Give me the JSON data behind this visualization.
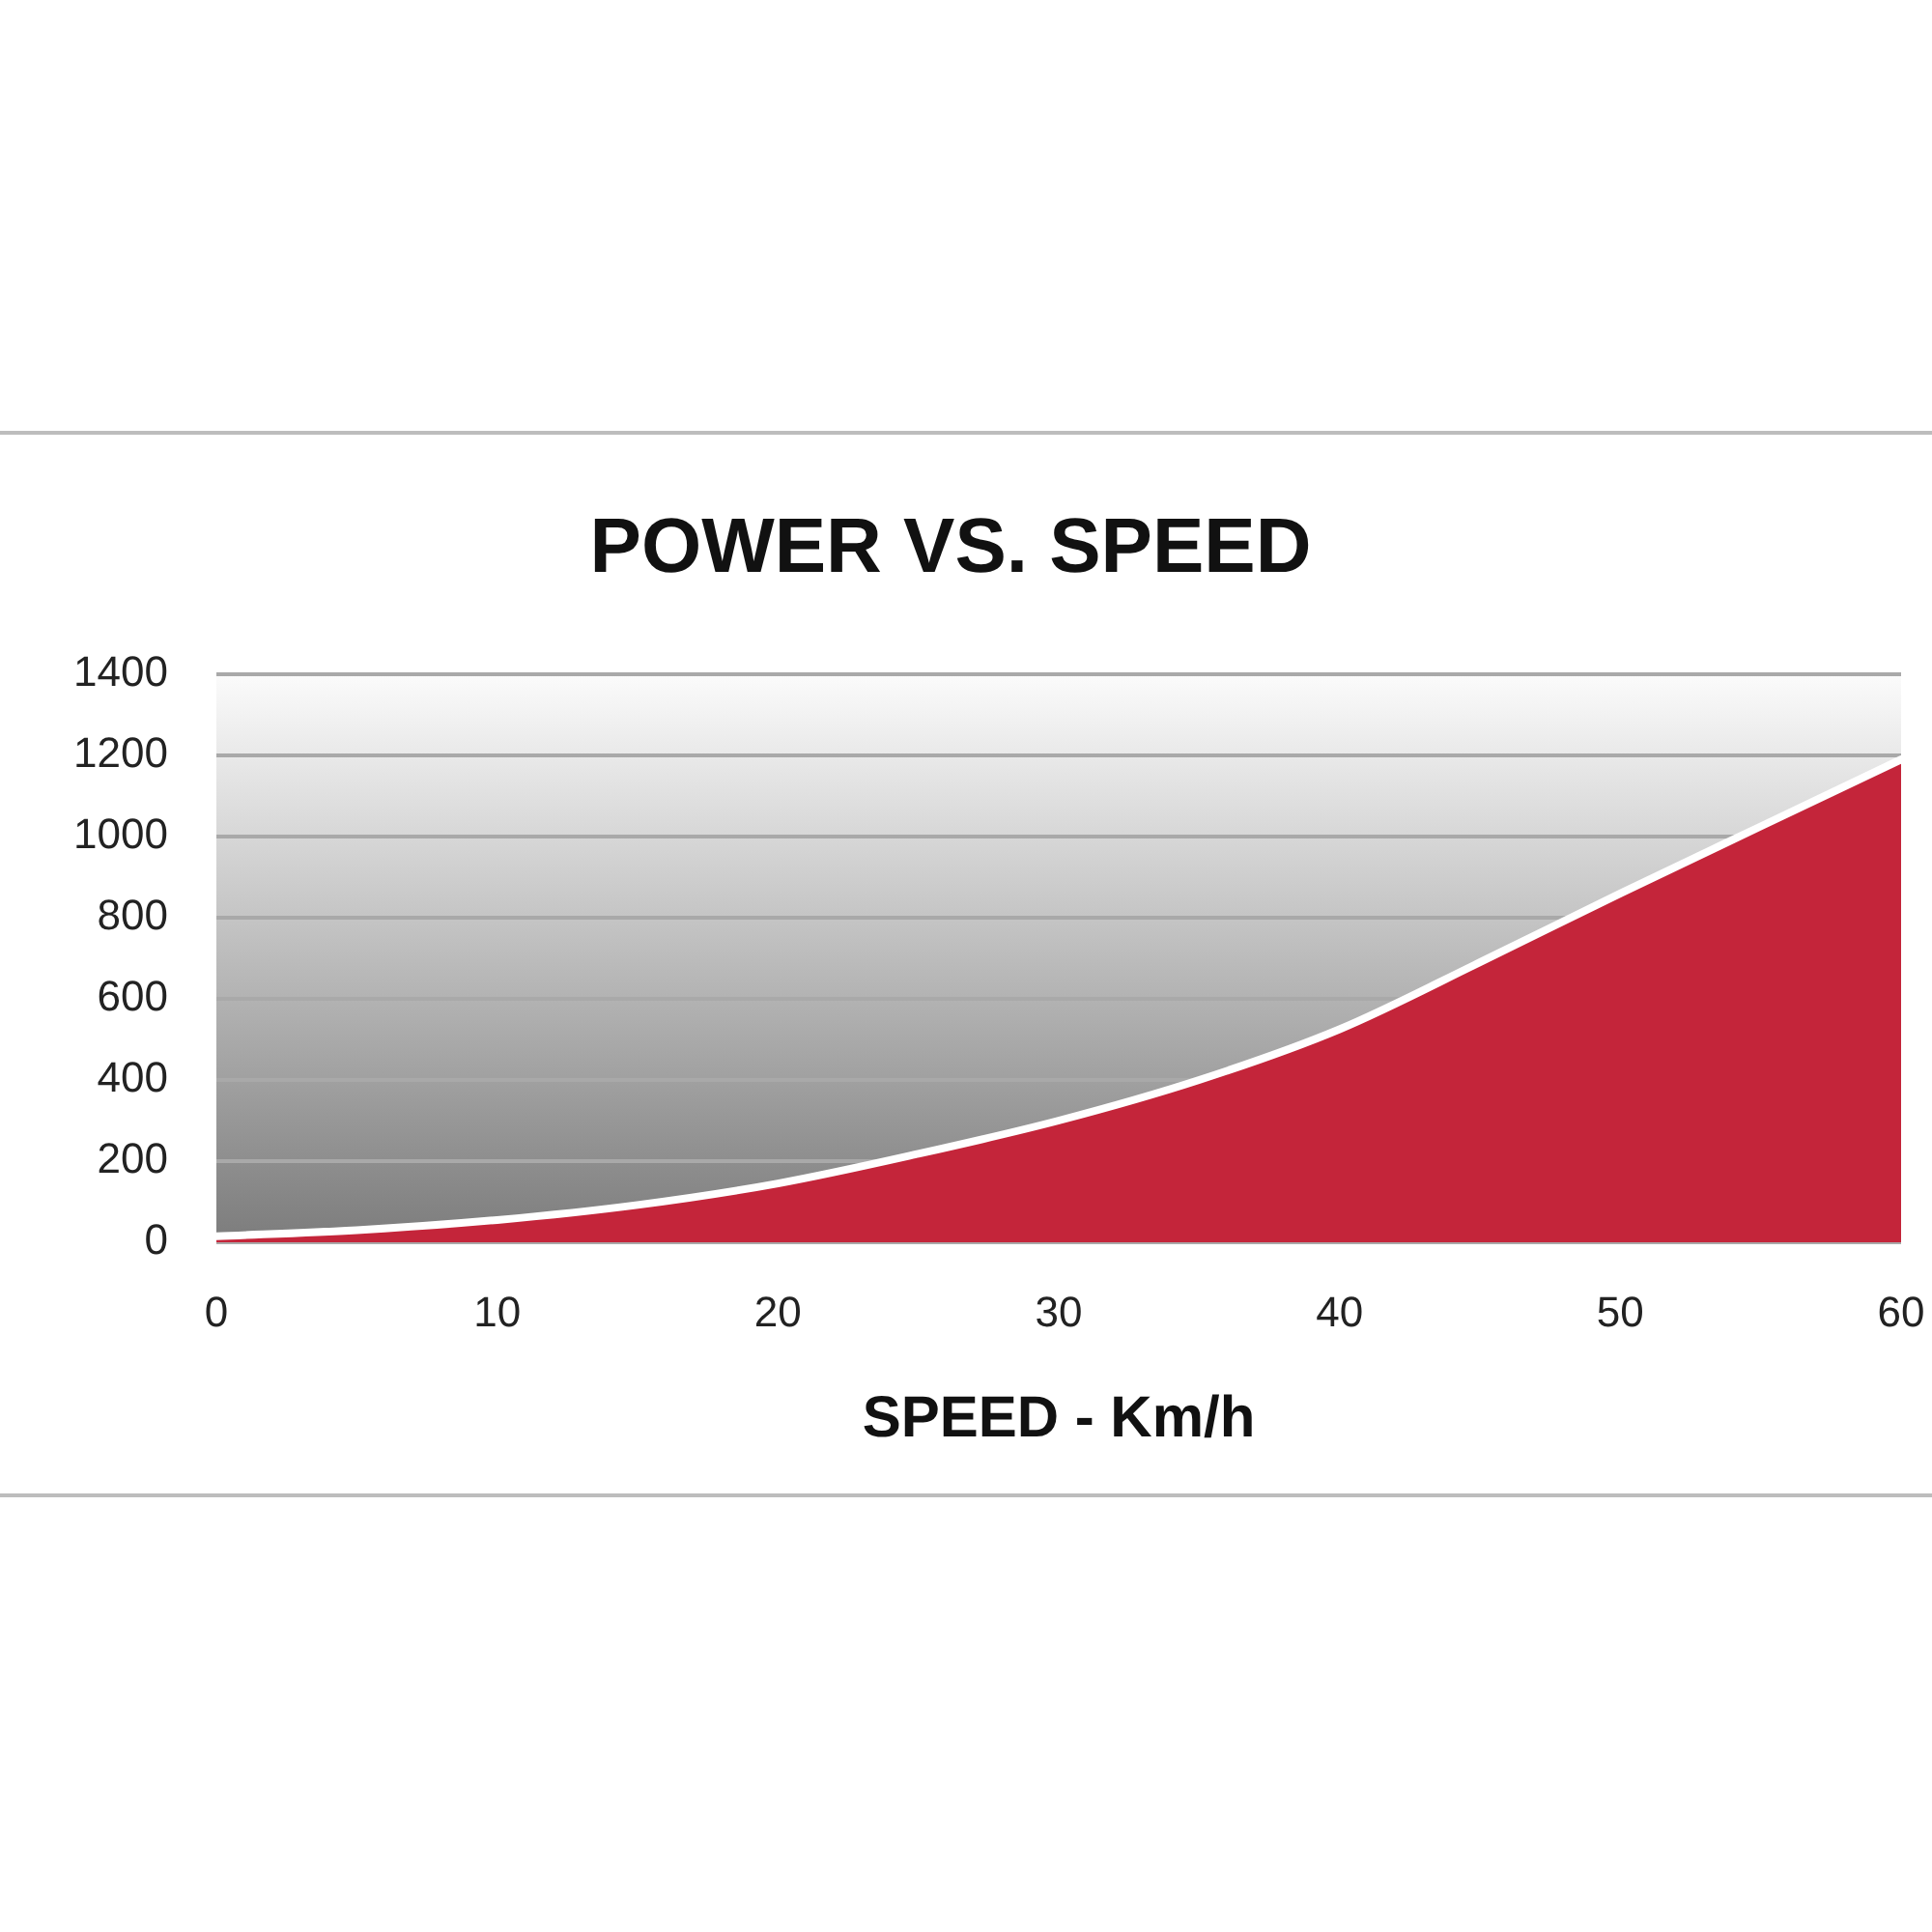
{
  "chart_data": {
    "type": "area",
    "title": "POWER VS. SPEED",
    "xlabel": "SPEED - Km/h",
    "x": [
      0,
      5,
      10,
      15,
      20,
      25,
      30,
      35,
      40,
      45,
      50,
      55,
      60
    ],
    "values": [
      15,
      30,
      55,
      92,
      145,
      218,
      300,
      400,
      525,
      690,
      860,
      1025,
      1190
    ],
    "color": "#c4253a",
    "xlim": [
      0,
      60
    ],
    "xticks": [
      0,
      10,
      20,
      30,
      40,
      50,
      60
    ],
    "ylim": [
      0,
      1400
    ],
    "yticks": [
      0,
      200,
      400,
      600,
      800,
      1000,
      1200,
      1400
    ],
    "grid": "y"
  }
}
